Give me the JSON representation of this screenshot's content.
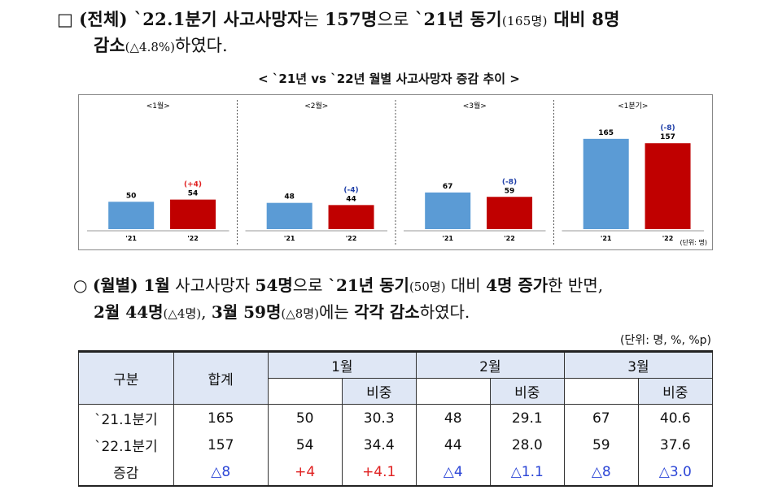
{
  "summary": {
    "bullet": "□",
    "part1": "(전체) `22.1분기 사고사망자",
    "part2": "는 ",
    "part3": "157명",
    "part4": "으로 ",
    "part5": "`21년 동기",
    "part6": "(165명)",
    "part7": " 대비 8명",
    "part8": "감소",
    "part9": "(△4.8%)",
    "part10": "하였다."
  },
  "chart_title": "< `21년 vs `22년 월별 사고사망자 증감 추이 >",
  "chart_data": {
    "type": "bar",
    "groups": [
      "<1월>",
      "<2월>",
      "<3월>",
      "<1분기>"
    ],
    "series": [
      {
        "name": "`21",
        "values": [
          50,
          48,
          67,
          165
        ],
        "color": "#5b9bd5"
      },
      {
        "name": "`22",
        "values": [
          54,
          44,
          59,
          157
        ],
        "color": "#c00000"
      }
    ],
    "change_labels": [
      "(+4)",
      "(-4)",
      "(-8)",
      "(-8)"
    ],
    "change_colors": [
      "#e02020",
      "#1f3fa8",
      "#1f3fa8",
      "#1f3fa8"
    ],
    "x_tick_labels": [
      "'21",
      "'22"
    ],
    "unit_label": "(단위: 명)",
    "ylim": [
      0,
      190
    ]
  },
  "monthly": {
    "bullet": "○",
    "p1": "(월별) 1월",
    "p2": " 사고사망자 ",
    "p3": "54명",
    "p4": "으로 ",
    "p5": "`21년 동기",
    "p6": "(50명)",
    "p7": " 대비 ",
    "p8": "4명 증가",
    "p9": "한 반면,",
    "q1": "2월 44명",
    "q2": "(△4명)",
    "q3": ", ",
    "q4": "3월 59명",
    "q5": "(△8명)",
    "q6": "에는 ",
    "q7": "각각 감소",
    "q8": "하였다."
  },
  "table": {
    "unit": "(단위: 명, %, %p)",
    "header_top": [
      "구분",
      "합계",
      "1월",
      "2월",
      "3월"
    ],
    "sub_header": "비중",
    "rows": [
      {
        "label": "`21.1분기",
        "cells": [
          "165",
          "50",
          "30.3",
          "48",
          "29.1",
          "67",
          "40.6"
        ]
      },
      {
        "label": "`22.1분기",
        "cells": [
          "157",
          "54",
          "34.4",
          "44",
          "28.0",
          "59",
          "37.6"
        ]
      },
      {
        "label": "증감",
        "cells": [
          "△8",
          "+4",
          "+4.1",
          "△4",
          "△1.1",
          "△8",
          "△3.0"
        ]
      }
    ],
    "change_colors": [
      "blue",
      "red",
      "red",
      "blue",
      "blue",
      "blue",
      "blue"
    ]
  }
}
